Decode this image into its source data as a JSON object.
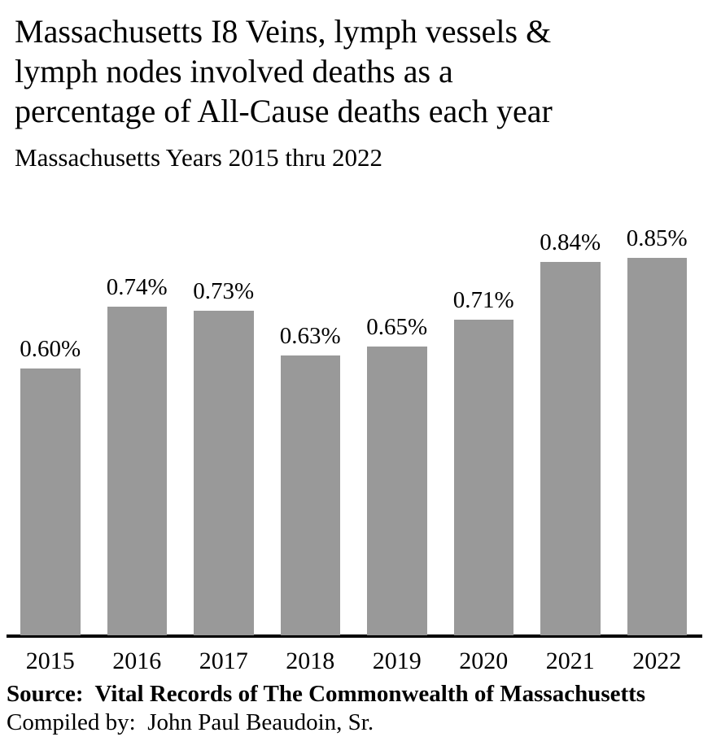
{
  "header": {
    "title": "Massachusetts I8 Veins, lymph vessels &\nlymph nodes involved deaths as a\npercentage of All-Cause deaths each year",
    "subtitle": "Massachusetts Years 2015 thru 2022"
  },
  "chart_data": {
    "type": "bar",
    "title": "Massachusetts I8 Veins, lymph vessels & lymph nodes involved deaths as a percentage of All-Cause deaths each year",
    "subtitle": "Massachusetts Years 2015 thru 2022",
    "categories": [
      "2015",
      "2016",
      "2017",
      "2018",
      "2019",
      "2020",
      "2021",
      "2022"
    ],
    "values": [
      0.6,
      0.74,
      0.73,
      0.63,
      0.65,
      0.71,
      0.84,
      0.85
    ],
    "value_labels": [
      "0.60%",
      "0.74%",
      "0.73%",
      "0.63%",
      "0.65%",
      "0.71%",
      "0.84%",
      "0.85%"
    ],
    "xlabel": "",
    "ylabel": "",
    "ylim": [
      0,
      0.85
    ],
    "unit": "percent of all-cause deaths",
    "grid": false,
    "legend_position": "none",
    "bar_color": "#999999",
    "axis_color": "#000000",
    "text_color": "#000000",
    "background_color": "#ffffff"
  },
  "footer": {
    "source": "Source:  Vital Records of The Commonwealth of Massachusetts",
    "compiled": "Compiled by:  John Paul Beaudoin, Sr."
  }
}
